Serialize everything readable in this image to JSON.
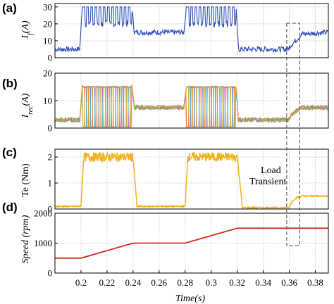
{
  "colors": {
    "if": "#2f4fb8",
    "irec": [
      "#c03cc0",
      "#e07a2a",
      "#2bb8c8",
      "#d4a020"
    ],
    "te": "#f2b21c",
    "speed": "#d42a1c",
    "grid": "#c8c8c8"
  },
  "annotation": {
    "line1": "Load",
    "line2": "Transient"
  },
  "x_axis": {
    "label": "Time(s)",
    "range": [
      0.18,
      0.39
    ],
    "ticks": [
      "0.2",
      "0.22",
      "0.24",
      "0.26",
      "0.28",
      "0.3",
      "0.32",
      "0.34",
      "0.36",
      "0.38"
    ]
  },
  "chart_data": [
    {
      "panel": "(a)",
      "type": "line",
      "ylabel_main": "I",
      "ylabel_sub": "f",
      "ylabel_tail": "(A)",
      "ylim": [
        0,
        32
      ],
      "yticks": [
        "0",
        "10",
        "20",
        "30"
      ],
      "grid": true,
      "series": [
        {
          "x": [
            0.18,
            0.199,
            0.201,
            0.239,
            0.241,
            0.279,
            0.281,
            0.319,
            0.321,
            0.359,
            0.362,
            0.366,
            0.37,
            0.39
          ],
          "y": [
            5,
            5,
            30,
            30,
            15,
            15,
            30,
            30,
            5,
            5,
            8,
            11,
            14,
            15
          ],
          "pattern": [
            "steady",
            "steady",
            "pwm",
            "pwm",
            "ripple",
            "ripple",
            "pwm",
            "pwm",
            "ripple",
            "ripple",
            "ripple",
            "ripple",
            "ripple",
            "ripple"
          ]
        }
      ]
    },
    {
      "panel": "(b)",
      "type": "line",
      "ylabel_main": "I",
      "ylabel_sub": "rec",
      "ylabel_tail": "(A)",
      "ylim": [
        0,
        20
      ],
      "yticks": [
        "0",
        "10",
        "20"
      ],
      "grid": true,
      "series": [
        {
          "x": [
            0.18,
            0.199,
            0.201,
            0.239,
            0.241,
            0.279,
            0.281,
            0.319,
            0.321,
            0.359,
            0.362,
            0.366,
            0.37,
            0.39
          ],
          "y": [
            3,
            3,
            15,
            15,
            7.5,
            7.5,
            15,
            15,
            3,
            3,
            5,
            6.5,
            7.5,
            7.5
          ]
        }
      ]
    },
    {
      "panel": "(c)",
      "type": "line",
      "ylabel_text": "Te (Nm)",
      "ylim": [
        0,
        2.3
      ],
      "yticks": [
        "0",
        "1",
        "2"
      ],
      "grid": true,
      "series": [
        {
          "x": [
            0.18,
            0.2,
            0.202,
            0.24,
            0.243,
            0.28,
            0.282,
            0.32,
            0.324,
            0.36,
            0.362,
            0.366,
            0.37,
            0.39
          ],
          "y": [
            0.1,
            0.1,
            2.0,
            2.0,
            0.1,
            0.1,
            2.0,
            2.0,
            0.05,
            0.05,
            0.3,
            0.45,
            0.5,
            0.5
          ]
        }
      ]
    },
    {
      "panel": "(d)",
      "type": "line",
      "ylabel_text": "Speed (rpm)",
      "ylim": [
        0,
        2000
      ],
      "yticks": [
        "0",
        "1000",
        "2000"
      ],
      "grid": true,
      "series": [
        {
          "x": [
            0.18,
            0.2,
            0.24,
            0.28,
            0.32,
            0.39
          ],
          "y": [
            500,
            500,
            1000,
            1000,
            1500,
            1500
          ]
        }
      ]
    }
  ]
}
